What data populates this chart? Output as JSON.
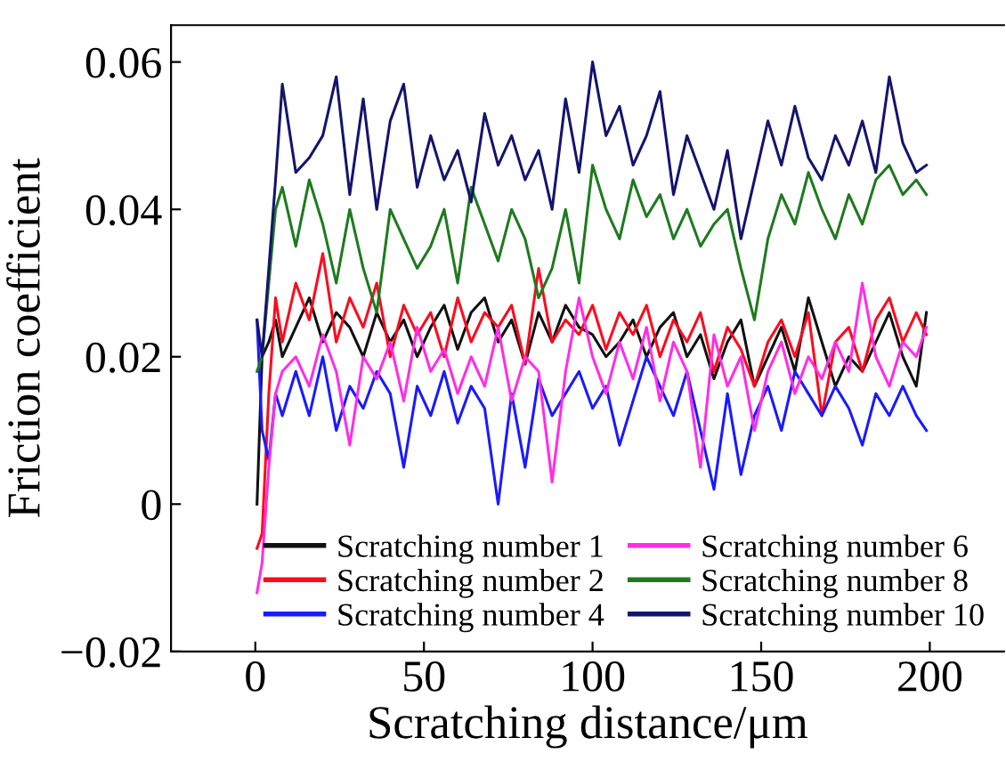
{
  "chart_data": {
    "type": "line",
    "xlabel": "Scratching distance/μm",
    "ylabel": "Friction coefficient",
    "x": [
      0.5,
      2,
      4,
      6,
      8,
      12,
      16,
      20,
      24,
      28,
      32,
      36,
      40,
      44,
      48,
      52,
      56,
      60,
      64,
      68,
      72,
      76,
      80,
      84,
      88,
      92,
      96,
      100,
      104,
      108,
      112,
      116,
      120,
      124,
      128,
      132,
      136,
      140,
      144,
      148,
      152,
      156,
      160,
      164,
      168,
      172,
      176,
      180,
      184,
      188,
      192,
      196,
      199
    ],
    "series": [
      {
        "name": "Scratching number 1",
        "color": "#111111",
        "values": [
          0.0,
          0.02,
          0.022,
          0.025,
          0.02,
          0.024,
          0.028,
          0.022,
          0.026,
          0.024,
          0.02,
          0.026,
          0.022,
          0.025,
          0.02,
          0.024,
          0.027,
          0.021,
          0.026,
          0.028,
          0.022,
          0.025,
          0.019,
          0.026,
          0.022,
          0.027,
          0.024,
          0.023,
          0.02,
          0.022,
          0.025,
          0.02,
          0.024,
          0.026,
          0.02,
          0.023,
          0.017,
          0.022,
          0.025,
          0.016,
          0.02,
          0.024,
          0.018,
          0.028,
          0.022,
          0.016,
          0.02,
          0.018,
          0.022,
          0.026,
          0.02,
          0.016,
          0.026
        ]
      },
      {
        "name": "Scratching number 2",
        "color": "#ff0a1e",
        "values": [
          -0.006,
          -0.004,
          0.015,
          0.028,
          0.022,
          0.03,
          0.025,
          0.034,
          0.022,
          0.028,
          0.024,
          0.03,
          0.02,
          0.027,
          0.023,
          0.026,
          0.02,
          0.028,
          0.022,
          0.026,
          0.024,
          0.027,
          0.019,
          0.032,
          0.022,
          0.025,
          0.023,
          0.027,
          0.021,
          0.026,
          0.023,
          0.027,
          0.02,
          0.025,
          0.022,
          0.026,
          0.018,
          0.024,
          0.021,
          0.016,
          0.022,
          0.025,
          0.02,
          0.026,
          0.012,
          0.022,
          0.024,
          0.018,
          0.025,
          0.028,
          0.022,
          0.026,
          0.023
        ]
      },
      {
        "name": "Scratching number 4",
        "color": "#1a1aff",
        "values": [
          0.025,
          0.01,
          0.006,
          0.015,
          0.012,
          0.018,
          0.012,
          0.02,
          0.01,
          0.016,
          0.013,
          0.018,
          0.015,
          0.005,
          0.016,
          0.012,
          0.018,
          0.011,
          0.016,
          0.013,
          0.0,
          0.015,
          0.005,
          0.017,
          0.012,
          0.015,
          0.018,
          0.013,
          0.016,
          0.008,
          0.014,
          0.02,
          0.016,
          0.012,
          0.018,
          0.01,
          0.002,
          0.015,
          0.004,
          0.012,
          0.016,
          0.01,
          0.018,
          0.015,
          0.012,
          0.016,
          0.013,
          0.008,
          0.015,
          0.012,
          0.016,
          0.012,
          0.01
        ]
      },
      {
        "name": "Scratching number 6",
        "color": "#ff2ee6",
        "values": [
          -0.012,
          -0.008,
          0.005,
          0.015,
          0.018,
          0.02,
          0.016,
          0.023,
          0.018,
          0.008,
          0.02,
          0.017,
          0.022,
          0.014,
          0.024,
          0.018,
          0.021,
          0.015,
          0.02,
          0.016,
          0.024,
          0.014,
          0.02,
          0.018,
          0.003,
          0.018,
          0.028,
          0.02,
          0.015,
          0.022,
          0.017,
          0.024,
          0.014,
          0.022,
          0.018,
          0.005,
          0.023,
          0.016,
          0.02,
          0.01,
          0.018,
          0.022,
          0.015,
          0.02,
          0.017,
          0.022,
          0.018,
          0.03,
          0.02,
          0.016,
          0.022,
          0.02,
          0.024
        ]
      },
      {
        "name": "Scratching number 8",
        "color": "#1f7a1f",
        "values": [
          0.018,
          0.02,
          0.03,
          0.04,
          0.043,
          0.035,
          0.044,
          0.038,
          0.03,
          0.04,
          0.032,
          0.026,
          0.04,
          0.036,
          0.032,
          0.035,
          0.04,
          0.03,
          0.043,
          0.038,
          0.033,
          0.04,
          0.036,
          0.028,
          0.032,
          0.04,
          0.03,
          0.046,
          0.04,
          0.036,
          0.044,
          0.039,
          0.042,
          0.036,
          0.04,
          0.035,
          0.038,
          0.04,
          0.032,
          0.025,
          0.036,
          0.042,
          0.038,
          0.045,
          0.04,
          0.036,
          0.042,
          0.038,
          0.044,
          0.046,
          0.042,
          0.044,
          0.042
        ]
      },
      {
        "name": "Scratching number 10",
        "color": "#14146e",
        "values": [
          0.025,
          0.02,
          0.032,
          0.044,
          0.057,
          0.045,
          0.047,
          0.05,
          0.058,
          0.042,
          0.055,
          0.04,
          0.052,
          0.057,
          0.043,
          0.05,
          0.044,
          0.048,
          0.041,
          0.053,
          0.046,
          0.05,
          0.044,
          0.048,
          0.04,
          0.055,
          0.045,
          0.06,
          0.05,
          0.054,
          0.046,
          0.05,
          0.056,
          0.042,
          0.05,
          0.045,
          0.04,
          0.048,
          0.036,
          0.044,
          0.052,
          0.046,
          0.054,
          0.047,
          0.044,
          0.05,
          0.046,
          0.052,
          0.045,
          0.058,
          0.049,
          0.045,
          0.046
        ]
      }
    ],
    "xlim": [
      -25,
      222
    ],
    "xticks": [
      0,
      50,
      100,
      150,
      200
    ],
    "ylim": [
      -0.02,
      0.065
    ],
    "yticks": [
      {
        "value": -0.02,
        "label": "−0.02"
      },
      {
        "value": 0,
        "label": "0"
      },
      {
        "value": 0.02,
        "label": "0.02"
      },
      {
        "value": 0.04,
        "label": "0.04"
      },
      {
        "value": 0.06,
        "label": "0.06"
      }
    ],
    "grid": false,
    "legend": "bottom right",
    "marker": "none",
    "line_style": "solid"
  }
}
